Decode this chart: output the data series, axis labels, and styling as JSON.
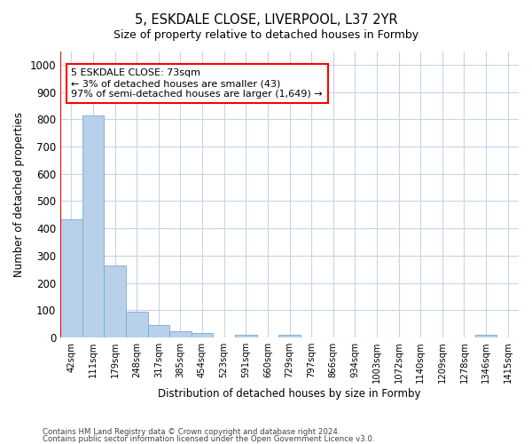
{
  "title": "5, ESKDALE CLOSE, LIVERPOOL, L37 2YR",
  "subtitle": "Size of property relative to detached houses in Formby",
  "xlabel": "Distribution of detached houses by size in Formby",
  "ylabel": "Number of detached properties",
  "bar_values": [
    433,
    815,
    265,
    93,
    46,
    22,
    17,
    0,
    10,
    0,
    10,
    0,
    0,
    0,
    0,
    0,
    0,
    0,
    0,
    10,
    0
  ],
  "bar_labels": [
    "42sqm",
    "111sqm",
    "179sqm",
    "248sqm",
    "317sqm",
    "385sqm",
    "454sqm",
    "523sqm",
    "591sqm",
    "660sqm",
    "729sqm",
    "797sqm",
    "866sqm",
    "934sqm",
    "1003sqm",
    "1072sqm",
    "1140sqm",
    "1209sqm",
    "1278sqm",
    "1346sqm",
    "1415sqm"
  ],
  "bar_color": "#b8d0ea",
  "bar_edge_color": "#7aaad0",
  "annotation_line1": "5 ESKDALE CLOSE: 73sqm",
  "annotation_line2": "← 3% of detached houses are smaller (43)",
  "annotation_line3": "97% of semi-detached houses are larger (1,649) →",
  "ylim": [
    0,
    1050
  ],
  "yticks": [
    0,
    100,
    200,
    300,
    400,
    500,
    600,
    700,
    800,
    900,
    1000
  ],
  "grid_color": "#c8d4e8",
  "background_color": "#ffffff",
  "footer_line1": "Contains HM Land Registry data © Crown copyright and database right 2024.",
  "footer_line2": "Contains public sector information licensed under the Open Government Licence v3.0.",
  "red_line_x": -0.5
}
